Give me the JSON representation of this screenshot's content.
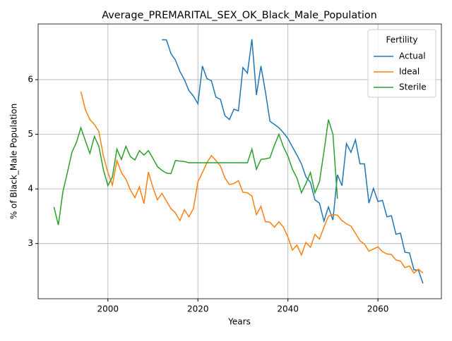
{
  "chart_data": {
    "type": "line",
    "title": "Average_PREMARITAL_SEX_OK_Black_Male_Population",
    "x_label": "Years",
    "y_label": "% of Black_Male Population",
    "legend_title": "Fertility",
    "legend_position": "upper right",
    "grid": true,
    "xlim": [
      1984.5,
      2074.1
    ],
    "xticks": [
      2000,
      2020,
      2040,
      2060
    ],
    "ylim": [
      1.99,
      7.02
    ],
    "yticks": [
      3,
      4,
      5,
      6
    ],
    "x": [
      1988,
      1989,
      1990,
      1991,
      1992,
      1993,
      1994,
      1995,
      1996,
      1997,
      1998,
      1999,
      2000,
      2001,
      2002,
      2003,
      2004,
      2005,
      2006,
      2007,
      2008,
      2009,
      2010,
      2011,
      2012,
      2013,
      2014,
      2015,
      2016,
      2017,
      2018,
      2019,
      2020,
      2021,
      2022,
      2023,
      2024,
      2025,
      2026,
      2027,
      2028,
      2029,
      2030,
      2031,
      2032,
      2033,
      2034,
      2035,
      2036,
      2037,
      2038,
      2039,
      2040,
      2041,
      2042,
      2043,
      2044,
      2045,
      2046,
      2047,
      2048,
      2049,
      2050,
      2051,
      2052,
      2053,
      2054,
      2055,
      2056,
      2057,
      2058,
      2059,
      2060,
      2061,
      2062,
      2063,
      2064,
      2065,
      2066,
      2067,
      2068,
      2069,
      2070
    ],
    "series": [
      {
        "name": "Actual",
        "color": "#1f77b4",
        "values": [
          null,
          null,
          null,
          null,
          null,
          null,
          null,
          null,
          null,
          null,
          null,
          null,
          null,
          null,
          null,
          null,
          null,
          null,
          null,
          null,
          null,
          null,
          null,
          null,
          6.73,
          6.73,
          6.48,
          6.36,
          6.15,
          6.0,
          5.8,
          5.7,
          5.56,
          6.25,
          6.02,
          5.98,
          5.68,
          5.64,
          5.34,
          5.27,
          5.46,
          5.43,
          6.22,
          6.12,
          6.74,
          5.72,
          6.25,
          5.78,
          5.24,
          5.18,
          5.12,
          5.03,
          4.92,
          4.77,
          4.62,
          4.46,
          4.22,
          4.12,
          3.8,
          3.74,
          3.41,
          3.67,
          3.43,
          4.26,
          4.06,
          4.83,
          4.67,
          4.9,
          4.46,
          4.46,
          3.74,
          4.01,
          3.77,
          3.79,
          3.49,
          3.51,
          3.17,
          3.19,
          2.84,
          2.83,
          2.52,
          2.51,
          2.27
        ]
      },
      {
        "name": "Ideal",
        "color": "#ff7f0e",
        "values": [
          null,
          null,
          null,
          null,
          null,
          null,
          5.78,
          5.45,
          5.27,
          5.18,
          5.05,
          4.6,
          4.3,
          4.07,
          4.52,
          4.3,
          4.18,
          3.98,
          3.84,
          4.04,
          3.73,
          4.31,
          4.03,
          3.8,
          3.92,
          3.78,
          3.64,
          3.56,
          3.42,
          3.62,
          3.49,
          3.64,
          4.13,
          4.3,
          4.48,
          4.61,
          4.52,
          4.42,
          4.2,
          4.08,
          4.1,
          4.15,
          3.94,
          3.93,
          3.87,
          3.53,
          3.68,
          3.4,
          3.39,
          3.3,
          3.4,
          3.3,
          3.12,
          2.88,
          2.97,
          2.79,
          3.02,
          2.93,
          3.17,
          3.08,
          3.3,
          3.5,
          3.53,
          3.52,
          3.42,
          3.36,
          3.32,
          3.19,
          3.05,
          2.99,
          2.86,
          2.9,
          2.94,
          2.85,
          2.81,
          2.8,
          2.7,
          2.68,
          2.56,
          2.59,
          2.46,
          2.53,
          2.46
        ]
      },
      {
        "name": "Sterile",
        "color": "#2ca02c",
        "values": [
          3.67,
          3.34,
          3.95,
          4.3,
          4.67,
          4.85,
          5.12,
          4.88,
          4.65,
          4.96,
          4.78,
          4.35,
          4.06,
          4.22,
          4.73,
          4.54,
          4.78,
          4.59,
          4.53,
          4.7,
          4.62,
          4.7,
          4.56,
          4.41,
          4.34,
          4.29,
          4.28,
          4.52,
          4.51,
          4.5,
          4.48,
          4.48,
          4.48,
          4.48,
          4.48,
          4.48,
          4.48,
          4.48,
          4.48,
          4.48,
          4.48,
          4.48,
          4.48,
          4.48,
          4.73,
          4.36,
          4.54,
          4.55,
          4.57,
          4.8,
          5.0,
          4.77,
          4.6,
          4.36,
          4.2,
          3.93,
          4.1,
          4.3,
          3.93,
          4.13,
          4.68,
          5.27,
          5.0,
          3.82,
          null,
          null,
          null,
          null,
          null,
          null,
          null,
          null,
          null,
          null,
          null,
          null,
          null,
          null,
          null,
          null,
          null,
          null,
          null
        ]
      }
    ]
  }
}
